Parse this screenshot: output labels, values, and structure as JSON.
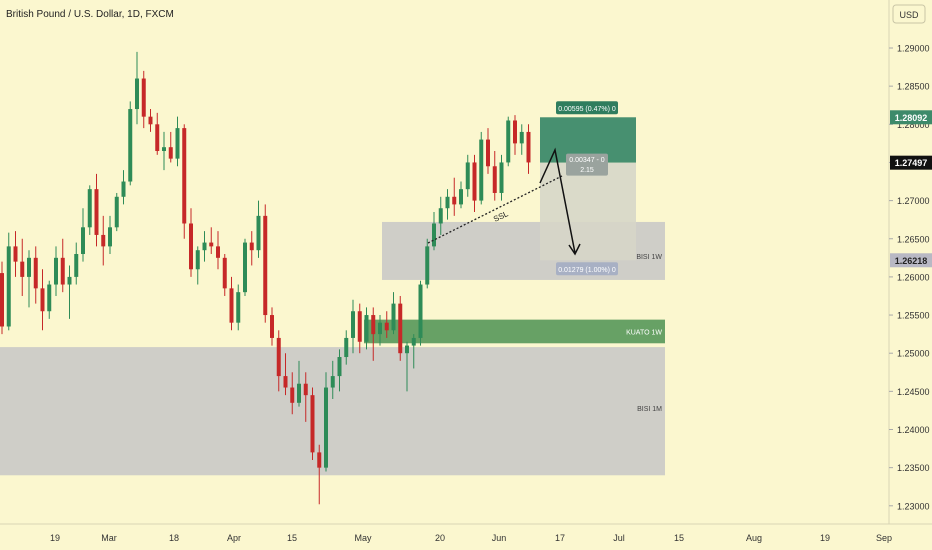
{
  "header": {
    "title": "British Pound / U.S. Dollar, 1D, FXCM",
    "currency_button": "USD"
  },
  "colors": {
    "background": "#fbf7cf",
    "up_candle": "#2e8b57",
    "down_candle": "#c62828",
    "zone_gray": "#c7c7c7",
    "zone_green": "#5f9c5f",
    "profit_zone": "#3d8a6a",
    "stop_zone": "#d6d6c8",
    "last_price_label": "#111111",
    "secondary_price_label": "#b8b8c4"
  },
  "chart_data": {
    "type": "candlestick",
    "title": "British Pound / U.S. Dollar, 1D, FXCM",
    "x_ticks": [
      "19",
      "Mar",
      "18",
      "Apr",
      "15",
      "May",
      "20",
      "Jun",
      "17",
      "Jul",
      "15",
      "Aug",
      "19",
      "Sep"
    ],
    "y_ticks": [
      "1.29000",
      "1.28500",
      "1.28000",
      "1.27500",
      "1.27000",
      "1.26500",
      "1.26000",
      "1.25500",
      "1.25000",
      "1.24500",
      "1.24000",
      "1.23500",
      "1.23000"
    ],
    "ylim": [
      1.2293,
      1.2946
    ],
    "price_labels": [
      {
        "text": "1.28092",
        "value": 1.28092,
        "style": "profit"
      },
      {
        "text": "1.27497",
        "value": 1.27497,
        "style": "last"
      },
      {
        "text": "1.26218",
        "value": 1.26218,
        "style": "secondary"
      }
    ],
    "candles": [
      [
        1.2605,
        1.262,
        1.2525,
        1.2535
      ],
      [
        1.2535,
        1.2658,
        1.253,
        1.264
      ],
      [
        1.264,
        1.266,
        1.26,
        1.262
      ],
      [
        1.262,
        1.265,
        1.2575,
        1.26
      ],
      [
        1.26,
        1.2635,
        1.256,
        1.2625
      ],
      [
        1.2625,
        1.264,
        1.2565,
        1.2585
      ],
      [
        1.2585,
        1.261,
        1.253,
        1.2555
      ],
      [
        1.2555,
        1.2595,
        1.2545,
        1.259
      ],
      [
        1.259,
        1.264,
        1.2575,
        1.2625
      ],
      [
        1.2625,
        1.265,
        1.258,
        1.259
      ],
      [
        1.259,
        1.2615,
        1.2545,
        1.26
      ],
      [
        1.26,
        1.2645,
        1.259,
        1.263
      ],
      [
        1.263,
        1.269,
        1.262,
        1.2665
      ],
      [
        1.2665,
        1.272,
        1.2655,
        1.2715
      ],
      [
        1.2715,
        1.2735,
        1.264,
        1.2655
      ],
      [
        1.2655,
        1.268,
        1.2615,
        1.264
      ],
      [
        1.264,
        1.268,
        1.263,
        1.2665
      ],
      [
        1.2665,
        1.271,
        1.266,
        1.2705
      ],
      [
        1.2705,
        1.274,
        1.2695,
        1.2725
      ],
      [
        1.2725,
        1.283,
        1.272,
        1.282
      ],
      [
        1.282,
        1.2895,
        1.28,
        1.286
      ],
      [
        1.286,
        1.287,
        1.2795,
        1.281
      ],
      [
        1.281,
        1.282,
        1.279,
        1.28
      ],
      [
        1.28,
        1.2815,
        1.276,
        1.2765
      ],
      [
        1.2765,
        1.279,
        1.274,
        1.277
      ],
      [
        1.277,
        1.279,
        1.275,
        1.2755
      ],
      [
        1.2755,
        1.281,
        1.2745,
        1.2795
      ],
      [
        1.2795,
        1.28,
        1.265,
        1.267
      ],
      [
        1.267,
        1.269,
        1.26,
        1.261
      ],
      [
        1.261,
        1.264,
        1.259,
        1.2635
      ],
      [
        1.2635,
        1.266,
        1.262,
        1.2645
      ],
      [
        1.2645,
        1.2665,
        1.263,
        1.264
      ],
      [
        1.264,
        1.266,
        1.261,
        1.2625
      ],
      [
        1.2625,
        1.263,
        1.2575,
        1.2585
      ],
      [
        1.2585,
        1.26,
        1.253,
        1.254
      ],
      [
        1.254,
        1.259,
        1.253,
        1.258
      ],
      [
        1.258,
        1.265,
        1.2575,
        1.2645
      ],
      [
        1.2645,
        1.266,
        1.2615,
        1.2635
      ],
      [
        1.2635,
        1.27,
        1.2625,
        1.268
      ],
      [
        1.268,
        1.2695,
        1.254,
        1.255
      ],
      [
        1.255,
        1.256,
        1.251,
        1.252
      ],
      [
        1.252,
        1.253,
        1.245,
        1.247
      ],
      [
        1.247,
        1.25,
        1.2445,
        1.2455
      ],
      [
        1.2455,
        1.2475,
        1.242,
        1.2435
      ],
      [
        1.2435,
        1.249,
        1.243,
        1.246
      ],
      [
        1.246,
        1.2475,
        1.241,
        1.2445
      ],
      [
        1.2445,
        1.2455,
        1.236,
        1.237
      ],
      [
        1.237,
        1.238,
        1.2302,
        1.235
      ],
      [
        1.235,
        1.2475,
        1.2345,
        1.2455
      ],
      [
        1.2455,
        1.249,
        1.244,
        1.247
      ],
      [
        1.247,
        1.2505,
        1.245,
        1.2495
      ],
      [
        1.2495,
        1.253,
        1.2485,
        1.252
      ],
      [
        1.252,
        1.257,
        1.25,
        1.2555
      ],
      [
        1.2555,
        1.2565,
        1.25,
        1.2515
      ],
      [
        1.2515,
        1.256,
        1.2505,
        1.255
      ],
      [
        1.255,
        1.256,
        1.249,
        1.2525
      ],
      [
        1.2525,
        1.255,
        1.251,
        1.254
      ],
      [
        1.254,
        1.2555,
        1.252,
        1.253
      ],
      [
        1.253,
        1.258,
        1.2525,
        1.2565
      ],
      [
        1.2565,
        1.2575,
        1.249,
        1.25
      ],
      [
        1.25,
        1.2515,
        1.245,
        1.251
      ],
      [
        1.251,
        1.2525,
        1.248,
        1.252
      ],
      [
        1.252,
        1.2595,
        1.251,
        1.259
      ],
      [
        1.259,
        1.265,
        1.2585,
        1.264
      ],
      [
        1.264,
        1.2685,
        1.2635,
        1.267
      ],
      [
        1.267,
        1.2705,
        1.2655,
        1.269
      ],
      [
        1.269,
        1.2715,
        1.2675,
        1.2705
      ],
      [
        1.2705,
        1.273,
        1.268,
        1.2695
      ],
      [
        1.2695,
        1.2725,
        1.269,
        1.2715
      ],
      [
        1.2715,
        1.276,
        1.2705,
        1.275
      ],
      [
        1.275,
        1.276,
        1.2685,
        1.27
      ],
      [
        1.27,
        1.279,
        1.2695,
        1.278
      ],
      [
        1.278,
        1.2795,
        1.2735,
        1.2745
      ],
      [
        1.2745,
        1.2765,
        1.27,
        1.271
      ],
      [
        1.271,
        1.276,
        1.27,
        1.275
      ],
      [
        1.275,
        1.281,
        1.2745,
        1.2805
      ],
      [
        1.2805,
        1.2812,
        1.276,
        1.2775
      ],
      [
        1.2775,
        1.28,
        1.276,
        1.279
      ],
      [
        1.279,
        1.28,
        1.2735,
        1.275
      ]
    ],
    "zones": [
      {
        "label": "BISI 1W",
        "top": 1.2672,
        "bottom": 1.2596
      },
      {
        "label": "KUATO 1W",
        "top": 1.2544,
        "bottom": 1.2513
      },
      {
        "label": "BISI 1M",
        "top": 1.2508,
        "bottom": 1.234
      }
    ],
    "trade_box": {
      "entry": 1.27497,
      "target": 1.28092,
      "stop": 1.26218,
      "top_label": "0.00595 (0.47%) 0",
      "ratio_label_line1": "0.00347 - 0",
      "ratio_label_line2": "2.15",
      "bottom_label": "0.01279 (1.00%) 0"
    },
    "annotations": {
      "trendline_label": "SSL"
    }
  }
}
